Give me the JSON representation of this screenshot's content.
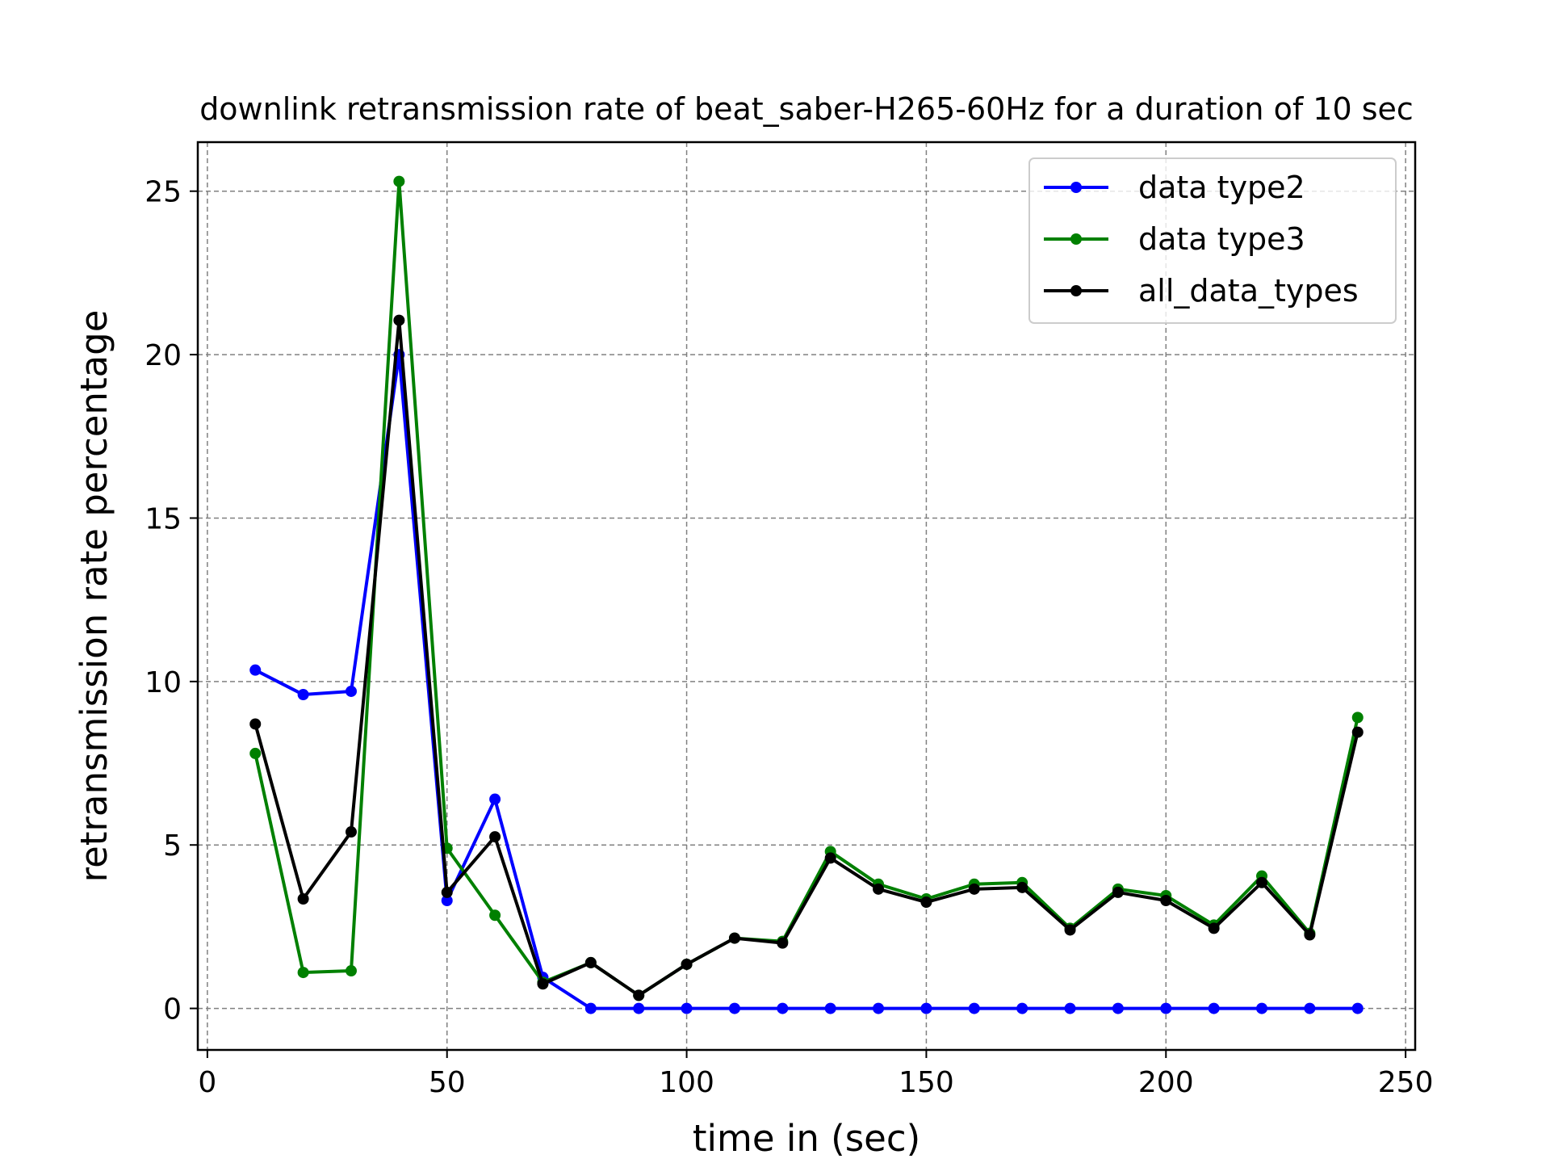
{
  "chart_data": {
    "type": "line",
    "title": "downlink retransmission rate of beat_saber-H265-60Hz for a duration of 10 sec",
    "xlabel": "time in (sec)",
    "ylabel": "retransmission rate percentage",
    "xlim": [
      -2,
      252
    ],
    "ylim": [
      -1.27,
      26.5
    ],
    "xticks": [
      0,
      50,
      100,
      150,
      200,
      250
    ],
    "yticks": [
      0,
      5,
      10,
      15,
      20,
      25
    ],
    "grid": true,
    "legend": "top-right",
    "x": [
      10,
      20,
      30,
      40,
      50,
      60,
      70,
      80,
      90,
      100,
      110,
      120,
      130,
      140,
      150,
      160,
      170,
      180,
      190,
      200,
      210,
      220,
      230,
      240
    ],
    "series": [
      {
        "name": "data type2",
        "color": "#0000ff",
        "values": [
          10.35,
          9.6,
          9.7,
          20.0,
          3.3,
          6.4,
          0.95,
          0.0,
          0.0,
          0.0,
          0.0,
          0.0,
          0.0,
          0.0,
          0.0,
          0.0,
          0.0,
          0.0,
          0.0,
          0.0,
          0.0,
          0.0,
          0.0,
          0.0
        ]
      },
      {
        "name": "data type3",
        "color": "#008000",
        "values": [
          7.8,
          1.1,
          1.15,
          25.3,
          4.9,
          2.85,
          0.8,
          1.4,
          0.4,
          1.35,
          2.15,
          2.05,
          4.8,
          3.8,
          3.35,
          3.8,
          3.85,
          2.45,
          3.65,
          3.45,
          2.55,
          4.05,
          2.3,
          8.9
        ]
      },
      {
        "name": "all_data_types",
        "color": "#000000",
        "values": [
          8.7,
          3.35,
          5.4,
          21.05,
          3.55,
          5.25,
          0.75,
          1.4,
          0.4,
          1.35,
          2.15,
          2.0,
          4.6,
          3.65,
          3.25,
          3.65,
          3.7,
          2.4,
          3.55,
          3.3,
          2.45,
          3.85,
          2.25,
          8.45
        ]
      }
    ]
  }
}
